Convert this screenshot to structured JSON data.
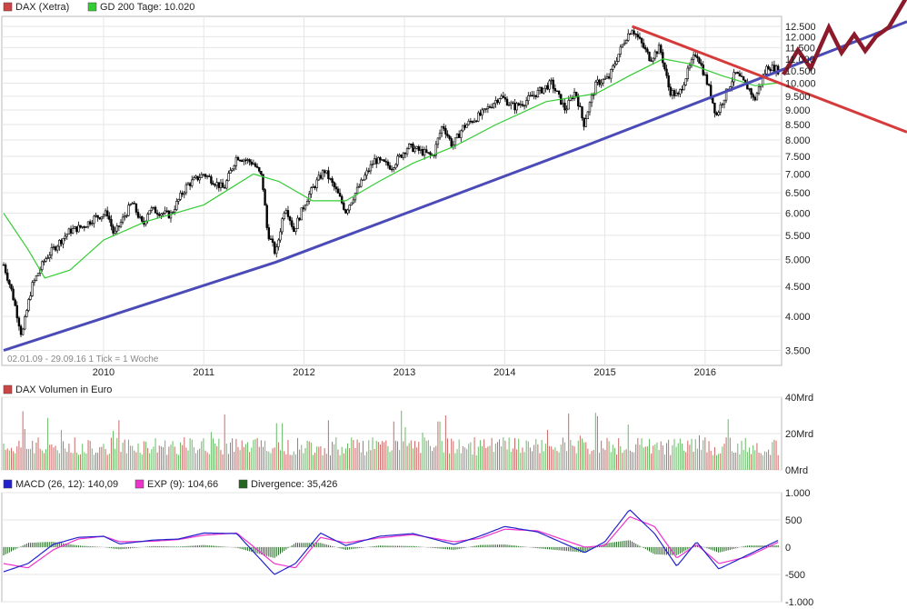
{
  "chart_data": [
    {
      "type": "candlestick",
      "legend": [
        {
          "label": "DAX (Xetra)",
          "color": "#cc4444"
        },
        {
          "label": "GD 200 Tage: 10.020",
          "color": "#33cc33"
        }
      ],
      "range_label": "02.01.09 - 29.09.16   1 Tick = 1 Woche",
      "x_ticks": [
        "2010",
        "2011",
        "2012",
        "2013",
        "2014",
        "2015",
        "2016"
      ],
      "y_ticks": [
        "3.500",
        "4.000",
        "4.500",
        "5.000",
        "5.500",
        "6.000",
        "6.500",
        "7.000",
        "7.500",
        "8.000",
        "8.500",
        "9.000",
        "9.500",
        "10.000",
        "10.500",
        "11.000",
        "11.500",
        "12.000",
        "12.500"
      ],
      "y_scale": "log",
      "ylim": [
        3300,
        13000
      ],
      "price_path": [
        [
          "2009-01-02",
          4900
        ],
        [
          "2009-02-01",
          4400
        ],
        [
          "2009-03-09",
          3700
        ],
        [
          "2009-04-15",
          4500
        ],
        [
          "2009-06-01",
          5000
        ],
        [
          "2009-07-15",
          5300
        ],
        [
          "2009-09-01",
          5600
        ],
        [
          "2009-10-20",
          5700
        ],
        [
          "2009-11-30",
          5900
        ],
        [
          "2010-01-15",
          6000
        ],
        [
          "2010-02-08",
          5500
        ],
        [
          "2010-04-15",
          6250
        ],
        [
          "2010-05-25",
          5700
        ],
        [
          "2010-06-15",
          6100
        ],
        [
          "2010-09-01",
          5950
        ],
        [
          "2010-11-01",
          6700
        ],
        [
          "2011-01-01",
          7000
        ],
        [
          "2011-03-15",
          6600
        ],
        [
          "2011-05-01",
          7500
        ],
        [
          "2011-07-01",
          7300
        ],
        [
          "2011-08-01",
          6900
        ],
        [
          "2011-08-20",
          5600
        ],
        [
          "2011-09-20",
          5100
        ],
        [
          "2011-10-25",
          6200
        ],
        [
          "2011-11-25",
          5600
        ],
        [
          "2012-01-15",
          6400
        ],
        [
          "2012-03-15",
          7100
        ],
        [
          "2012-05-01",
          6500
        ],
        [
          "2012-06-01",
          6050
        ],
        [
          "2012-07-15",
          6600
        ],
        [
          "2012-09-15",
          7400
        ],
        [
          "2012-11-15",
          7200
        ],
        [
          "2013-01-15",
          7800
        ],
        [
          "2013-04-15",
          7500
        ],
        [
          "2013-05-20",
          8500
        ],
        [
          "2013-06-25",
          7800
        ],
        [
          "2013-08-01",
          8400
        ],
        [
          "2013-10-15",
          8900
        ],
        [
          "2013-12-15",
          9500
        ],
        [
          "2014-02-05",
          9100
        ],
        [
          "2014-03-15",
          9300
        ],
        [
          "2014-06-20",
          10000
        ],
        [
          "2014-08-10",
          9000
        ],
        [
          "2014-09-15",
          9700
        ],
        [
          "2014-10-16",
          8500
        ],
        [
          "2014-12-01",
          10000
        ],
        [
          "2015-01-15",
          10200
        ],
        [
          "2015-03-20",
          12000
        ],
        [
          "2015-04-10",
          12400
        ],
        [
          "2015-06-15",
          11000
        ],
        [
          "2015-07-20",
          11500
        ],
        [
          "2015-08-24",
          9700
        ],
        [
          "2015-09-25",
          9500
        ],
        [
          "2015-11-30",
          11300
        ],
        [
          "2016-01-15",
          9800
        ],
        [
          "2016-02-11",
          8800
        ],
        [
          "2016-04-20",
          10400
        ],
        [
          "2016-06-15",
          9700
        ],
        [
          "2016-06-27",
          9300
        ],
        [
          "2016-08-15",
          10700
        ],
        [
          "2016-09-29",
          10500
        ]
      ],
      "gd200_path": [
        [
          "2009-01-02",
          6000
        ],
        [
          "2009-04-01",
          5200
        ],
        [
          "2009-06-01",
          4650
        ],
        [
          "2009-09-01",
          4800
        ],
        [
          "2010-01-01",
          5400
        ],
        [
          "2010-06-01",
          5800
        ],
        [
          "2011-01-01",
          6200
        ],
        [
          "2011-07-01",
          7000
        ],
        [
          "2011-10-01",
          6800
        ],
        [
          "2012-02-01",
          6300
        ],
        [
          "2012-06-01",
          6300
        ],
        [
          "2012-10-01",
          6800
        ],
        [
          "2013-02-01",
          7300
        ],
        [
          "2013-07-01",
          7800
        ],
        [
          "2013-12-01",
          8500
        ],
        [
          "2014-06-01",
          9300
        ],
        [
          "2014-12-01",
          9600
        ],
        [
          "2015-04-01",
          10300
        ],
        [
          "2015-08-01",
          11000
        ],
        [
          "2015-11-01",
          10800
        ],
        [
          "2016-03-01",
          10300
        ],
        [
          "2016-07-01",
          9900
        ],
        [
          "2016-09-29",
          10020
        ]
      ],
      "overlay_lines": [
        {
          "name": "support",
          "color": "#4b4bb7",
          "points": [
            [
              "2009-01-02",
              3500
            ],
            [
              "2011-09-20",
              4950
            ],
            [
              "2014-10-16",
              7800
            ],
            [
              "2016-09-29",
              10500
            ]
          ]
        },
        {
          "name": "resistance",
          "color": "#d63b3b",
          "points": [
            [
              "2015-04-10",
              12500
            ],
            [
              "2016-09-29",
              10000
            ]
          ]
        }
      ]
    },
    {
      "type": "bar",
      "legend": [
        {
          "label": "DAX Volumen in Euro",
          "color": "#cc4444"
        }
      ],
      "y_ticks": [
        "40Mrd",
        "20Mrd",
        "0Mrd"
      ],
      "ylim": [
        0,
        40
      ]
    },
    {
      "type": "line",
      "legend": [
        {
          "label": "MACD (26, 12): 140,09",
          "color": "#2222cc"
        },
        {
          "label": "EXP (9): 104,66",
          "color": "#ee33cc"
        },
        {
          "label": "Divergence: 35,426",
          "color": "#226622"
        }
      ],
      "y_ticks": [
        "1.000",
        "500",
        "0",
        "-500",
        "-1.000"
      ],
      "ylim": [
        -1000,
        1000
      ],
      "macd_path": [
        [
          "2009-01-02",
          -450
        ],
        [
          "2009-04-01",
          -300
        ],
        [
          "2009-07-01",
          50
        ],
        [
          "2009-10-01",
          180
        ],
        [
          "2010-01-01",
          200
        ],
        [
          "2010-03-01",
          60
        ],
        [
          "2010-07-01",
          130
        ],
        [
          "2010-10-01",
          150
        ],
        [
          "2011-01-01",
          260
        ],
        [
          "2011-05-01",
          250
        ],
        [
          "2011-09-15",
          -500
        ],
        [
          "2011-12-01",
          -300
        ],
        [
          "2012-03-01",
          260
        ],
        [
          "2012-06-01",
          30
        ],
        [
          "2012-10-01",
          200
        ],
        [
          "2013-02-01",
          250
        ],
        [
          "2013-07-01",
          50
        ],
        [
          "2013-10-01",
          200
        ],
        [
          "2014-01-01",
          380
        ],
        [
          "2014-05-01",
          280
        ],
        [
          "2014-10-20",
          -100
        ],
        [
          "2015-01-01",
          100
        ],
        [
          "2015-04-01",
          690
        ],
        [
          "2015-07-01",
          250
        ],
        [
          "2015-09-20",
          -350
        ],
        [
          "2015-12-01",
          100
        ],
        [
          "2016-02-20",
          -400
        ],
        [
          "2016-06-01",
          -150
        ],
        [
          "2016-09-29",
          140
        ]
      ],
      "exp_path": [
        [
          "2009-01-02",
          -300
        ],
        [
          "2009-04-01",
          -380
        ],
        [
          "2009-07-01",
          -50
        ],
        [
          "2009-10-01",
          150
        ],
        [
          "2010-01-01",
          200
        ],
        [
          "2010-03-01",
          100
        ],
        [
          "2010-07-01",
          110
        ],
        [
          "2010-10-01",
          140
        ],
        [
          "2011-01-01",
          220
        ],
        [
          "2011-05-01",
          260
        ],
        [
          "2011-09-15",
          -300
        ],
        [
          "2011-12-01",
          -380
        ],
        [
          "2012-03-01",
          180
        ],
        [
          "2012-06-01",
          80
        ],
        [
          "2012-10-01",
          170
        ],
        [
          "2013-02-01",
          230
        ],
        [
          "2013-07-01",
          100
        ],
        [
          "2013-10-01",
          160
        ],
        [
          "2014-01-01",
          330
        ],
        [
          "2014-05-01",
          300
        ],
        [
          "2014-10-20",
          0
        ],
        [
          "2015-01-01",
          30
        ],
        [
          "2015-04-01",
          560
        ],
        [
          "2015-07-01",
          380
        ],
        [
          "2015-09-20",
          -200
        ],
        [
          "2015-12-01",
          50
        ],
        [
          "2016-02-20",
          -300
        ],
        [
          "2016-06-01",
          -180
        ],
        [
          "2016-09-29",
          105
        ]
      ]
    }
  ]
}
